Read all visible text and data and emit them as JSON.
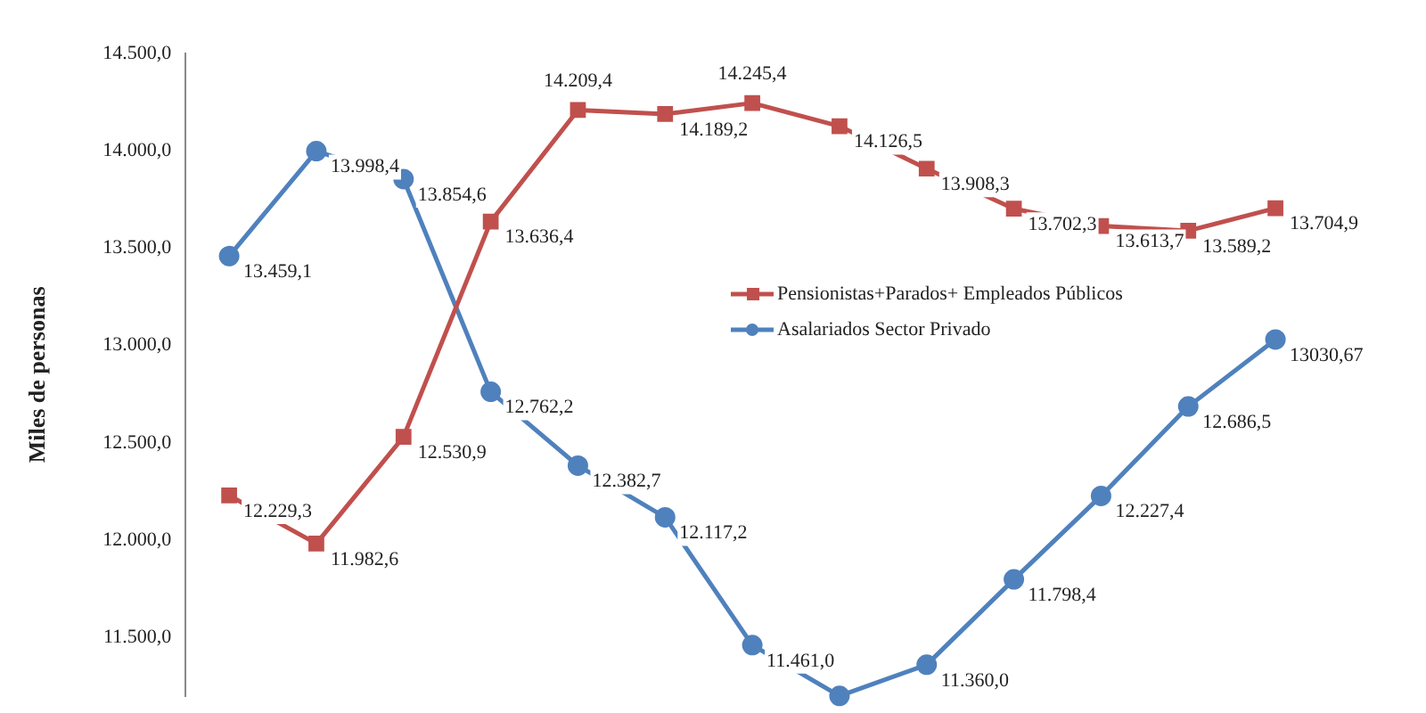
{
  "chart_data": {
    "type": "line",
    "ylabel": "Miles de personas",
    "categories": [
      null,
      null,
      null,
      null,
      null,
      null,
      null,
      null,
      null,
      null,
      null,
      null,
      null
    ],
    "series": [
      {
        "name": "Pensionistas+Parados+ Empleados Públicos",
        "color": "#c0504d",
        "marker": "square",
        "values": [
          12229.3,
          11982.6,
          12530.9,
          13636.4,
          14209.4,
          14189.2,
          14245.4,
          14126.5,
          13908.3,
          13702.3,
          13613.7,
          13589.2,
          13704.9
        ],
        "value_labels": [
          "12.229,3",
          "11.982,6",
          "12.530,9",
          "13.636,4",
          "14.209,4",
          "14.189,2",
          "14.245,4",
          "14.126,5",
          "13.908,3",
          "13.702,3",
          "13.613,7",
          "13.589,2",
          "13.704,9"
        ]
      },
      {
        "name": "Asalariados Sector Privado",
        "color": "#4f81bd",
        "marker": "circle",
        "values": [
          13459.1,
          13998.4,
          13854.6,
          12762.2,
          12382.7,
          12117.2,
          11461.0,
          11200,
          11360.0,
          11798.4,
          12227.4,
          12686.5,
          13030.67
        ],
        "value_labels": [
          "13.459,1",
          "13.998,4",
          "13.854,6",
          "12.762,2",
          "12.382,7",
          "12.117,2",
          "11.461,0",
          null,
          "11.360,0",
          "11.798,4",
          "12.227,4",
          "12.686,5",
          "13030,67"
        ]
      }
    ],
    "ylim": [
      11200,
      14500
    ],
    "yticks": [
      {
        "value": 11500,
        "label": "11.500,0"
      },
      {
        "value": 12000,
        "label": "12.000,0"
      },
      {
        "value": 12500,
        "label": "12.500,0"
      },
      {
        "value": 13000,
        "label": "13.000,0"
      },
      {
        "value": 13500,
        "label": "13.500,0"
      },
      {
        "value": 14000,
        "label": "14.000,0"
      },
      {
        "value": 14500,
        "label": "14.500,0"
      }
    ],
    "tick_labels": "y",
    "grid": false,
    "legend": "right",
    "line_style": "solid"
  }
}
